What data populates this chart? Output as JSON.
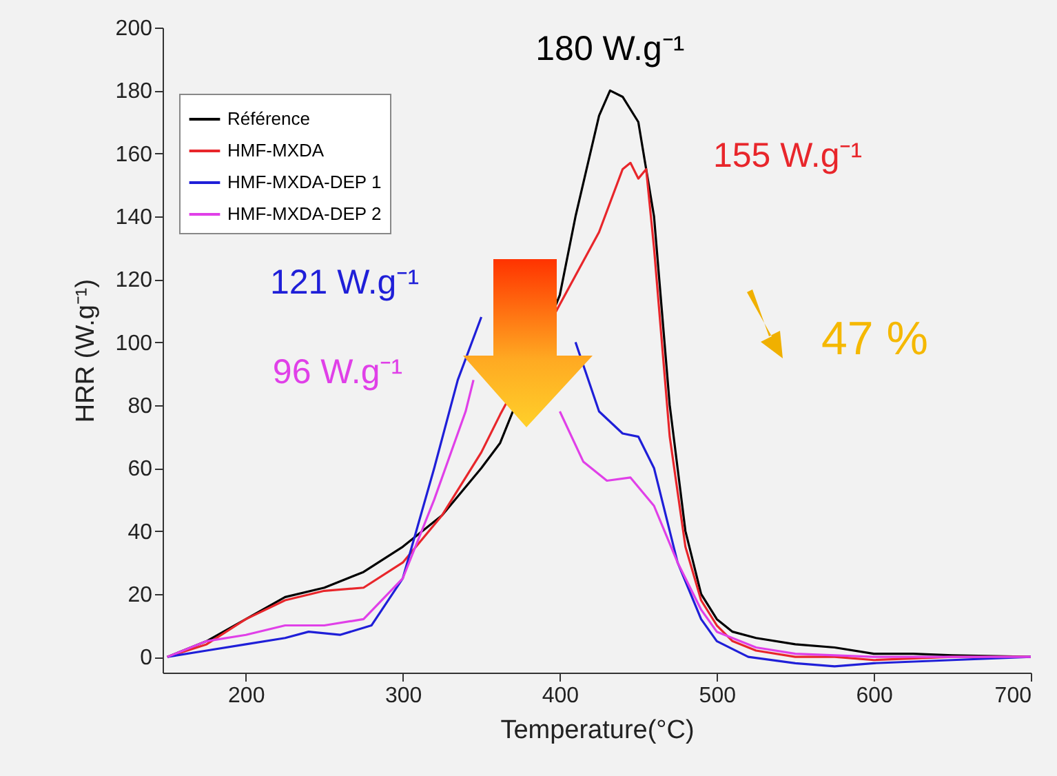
{
  "chart_data": {
    "type": "line",
    "xlabel": "Temperature(°C)",
    "ylabel": "HRR (W.g⁻¹)",
    "xlim": [
      147,
      700
    ],
    "ylim": [
      -5,
      200
    ],
    "xticks": [
      200,
      300,
      400,
      500,
      600,
      700
    ],
    "yticks": [
      0,
      20,
      40,
      60,
      80,
      100,
      120,
      140,
      160,
      180,
      200
    ],
    "grid": false,
    "legend": "top left",
    "line_style": "solid",
    "marker": "none",
    "series": [
      {
        "name": "Référence",
        "color": "#000000",
        "x": [
          150,
          175,
          200,
          225,
          250,
          275,
          300,
          325,
          350,
          362,
          400,
          410,
          425,
          432,
          440,
          450,
          460,
          470,
          480,
          490,
          500,
          510,
          525,
          550,
          575,
          600,
          625,
          650,
          700
        ],
        "values": [
          0,
          5,
          12,
          19,
          22,
          27,
          35,
          45,
          60,
          68,
          115,
          140,
          172,
          180,
          178,
          170,
          140,
          80,
          40,
          20,
          12,
          8,
          6,
          4,
          3,
          1,
          1,
          0.5,
          0
        ]
      },
      {
        "name": "HMF-MXDA",
        "color": "#e8262b",
        "x": [
          150,
          175,
          200,
          225,
          250,
          275,
          300,
          325,
          350,
          362,
          400,
          425,
          440,
          445,
          450,
          455,
          460,
          470,
          480,
          490,
          500,
          510,
          525,
          550,
          575,
          600,
          650,
          700
        ],
        "values": [
          0,
          4,
          12,
          18,
          21,
          22,
          30,
          45,
          65,
          77,
          112,
          135,
          155,
          157,
          152,
          155,
          130,
          70,
          35,
          18,
          10,
          5,
          2,
          0,
          0,
          -1,
          0,
          0
        ]
      },
      {
        "name": "HMF-MXDA-DEP 1",
        "color": "#1f1fd8",
        "x": [
          150,
          175,
          200,
          225,
          240,
          260,
          280,
          300,
          320,
          335,
          350,
          380,
          395,
          410,
          425,
          440,
          450,
          460,
          475,
          490,
          500,
          520,
          550,
          575,
          600,
          650,
          700
        ],
        "values": [
          0,
          2,
          4,
          6,
          8,
          7,
          10,
          25,
          60,
          88,
          108,
          null,
          null,
          100,
          78,
          71,
          70,
          60,
          30,
          12,
          5,
          0,
          -2,
          -3,
          -2,
          -1,
          0
        ]
      },
      {
        "name": "HMF-MXDA-DEP 2",
        "color": "#e040e8",
        "x": [
          150,
          175,
          200,
          225,
          250,
          275,
          300,
          320,
          340,
          345,
          365,
          380,
          400,
          415,
          430,
          445,
          460,
          475,
          490,
          500,
          525,
          550,
          600,
          650,
          700
        ],
        "values": [
          0,
          5,
          7,
          10,
          10,
          12,
          25,
          50,
          78,
          88,
          null,
          null,
          78,
          62,
          56,
          57,
          48,
          30,
          15,
          8,
          3,
          1,
          0,
          0,
          0
        ]
      }
    ],
    "annotations": [
      {
        "text": "180 W.g⁻¹",
        "x": 432,
        "y": 180
      },
      {
        "text": "155 W.g⁻¹",
        "x": 445,
        "y": 157
      },
      "121 W.g⁻¹",
      "96 W.g⁻¹",
      "47 %"
    ]
  }
}
